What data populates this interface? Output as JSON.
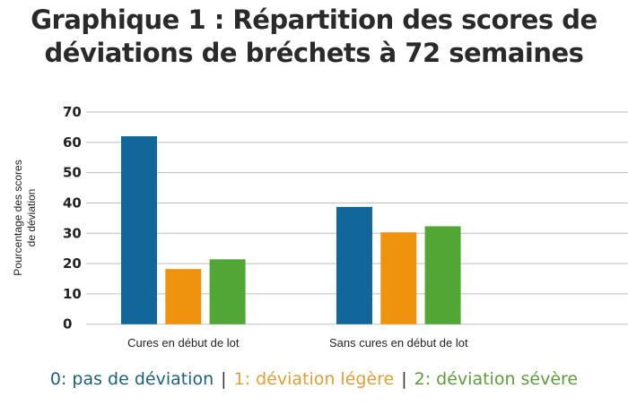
{
  "chart_data": {
    "type": "bar",
    "title": "Graphique 1 : Répartition des scores de déviations de bréchets à 72 semaines",
    "title_lines": [
      "Graphique 1 : Répartition des scores de",
      "déviations de bréchets à 72 semaines"
    ],
    "xlabel": "",
    "ylabel_lines": [
      "Pourcentage des scores",
      "de déviation"
    ],
    "ylim": [
      0,
      70
    ],
    "yticks": [
      0,
      10,
      20,
      30,
      40,
      50,
      60,
      70
    ],
    "grid": true,
    "legend_placement": "bottom",
    "categories": [
      "Cures en début de lot",
      "Sans cures en début de lot"
    ],
    "series": [
      {
        "name": "0: pas de déviation",
        "color": "#11669a",
        "legend_color": "#1d5f7c",
        "values": [
          62,
          38.7
        ]
      },
      {
        "name": "1: déviation légère",
        "color": "#ef930f",
        "legend_color": "#dca03a",
        "values": [
          18.2,
          30.3
        ]
      },
      {
        "name": "2: déviation sévère",
        "color": "#52a636",
        "legend_color": "#5d9c3e",
        "values": [
          21.4,
          32.3
        ]
      }
    ]
  }
}
